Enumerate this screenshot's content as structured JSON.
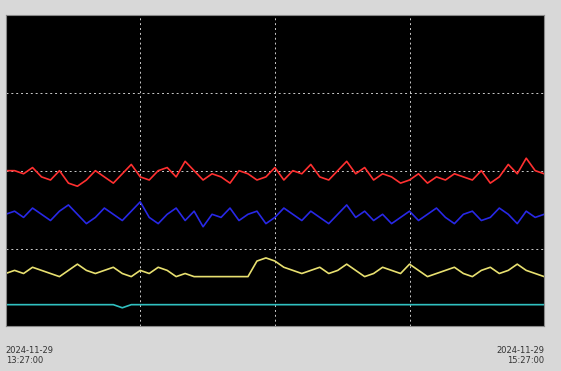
{
  "chart_data": {
    "type": "line",
    "x": [
      0,
      1,
      2,
      3,
      4,
      5,
      6,
      7,
      8,
      9,
      10,
      11,
      12,
      13,
      14,
      15,
      16,
      17,
      18,
      19,
      20,
      21,
      22,
      23,
      24,
      25,
      26,
      27,
      28,
      29,
      30,
      31,
      32,
      33,
      34,
      35,
      36,
      37,
      38,
      39,
      40,
      41,
      42,
      43,
      44,
      45,
      46,
      47,
      48,
      49,
      50,
      51,
      52,
      53,
      54,
      55,
      56,
      57,
      58,
      59,
      60
    ],
    "xlim": [
      0,
      60
    ],
    "xticks": [
      0,
      15,
      30,
      45,
      60
    ],
    "ylim": [
      0,
      100
    ],
    "yticks": [
      0,
      25,
      50,
      75,
      100
    ],
    "grid": true,
    "tick_labels": false,
    "annotations": [
      "2024-11-29\n13:27:00",
      "2024-11-29\n15:27:00"
    ],
    "series": [
      {
        "color": "#ff3030",
        "values": [
          50,
          50,
          49,
          51,
          48,
          47,
          50,
          46,
          45,
          47,
          50,
          48,
          46,
          49,
          52,
          48,
          47,
          50,
          51,
          48,
          53,
          50,
          47,
          49,
          48,
          46,
          50,
          49,
          47,
          48,
          51,
          47,
          50,
          49,
          52,
          48,
          47,
          50,
          53,
          49,
          51,
          47,
          49,
          48,
          46,
          47,
          49,
          46,
          48,
          47,
          49,
          48,
          47,
          50,
          46,
          48,
          52,
          49,
          54,
          50,
          49
        ]
      },
      {
        "color": "#2828e6",
        "values": [
          36,
          37,
          35,
          38,
          36,
          34,
          37,
          39,
          36,
          33,
          35,
          38,
          36,
          34,
          37,
          40,
          35,
          33,
          36,
          38,
          34,
          37,
          32,
          36,
          35,
          38,
          34,
          36,
          37,
          33,
          35,
          38,
          36,
          34,
          37,
          35,
          33,
          36,
          39,
          35,
          37,
          34,
          36,
          33,
          35,
          37,
          34,
          36,
          38,
          35,
          33,
          36,
          37,
          34,
          35,
          38,
          36,
          33,
          37,
          35,
          36
        ]
      },
      {
        "color": "#e8e070",
        "values": [
          17,
          18,
          17,
          19,
          18,
          17,
          16,
          18,
          20,
          18,
          17,
          18,
          19,
          17,
          16,
          18,
          17,
          19,
          18,
          16,
          17,
          16,
          16,
          16,
          16,
          16,
          16,
          16,
          21,
          22,
          21,
          19,
          18,
          17,
          18,
          19,
          17,
          18,
          20,
          18,
          16,
          17,
          19,
          18,
          17,
          20,
          18,
          16,
          17,
          18,
          19,
          17,
          16,
          18,
          19,
          17,
          18,
          20,
          18,
          17,
          16
        ]
      },
      {
        "color": "#30c0c0",
        "values": [
          7,
          7,
          7,
          7,
          7,
          7,
          7,
          7,
          7,
          7,
          7,
          7,
          7,
          6,
          7,
          7,
          7,
          7,
          7,
          7,
          7,
          7,
          7,
          7,
          7,
          7,
          7,
          7,
          7,
          7,
          7,
          7,
          7,
          7,
          7,
          7,
          7,
          7,
          7,
          7,
          7,
          7,
          7,
          7,
          7,
          7,
          7,
          7,
          7,
          7,
          7,
          7,
          7,
          7,
          7,
          7,
          7,
          7,
          7,
          7,
          7
        ]
      }
    ]
  }
}
